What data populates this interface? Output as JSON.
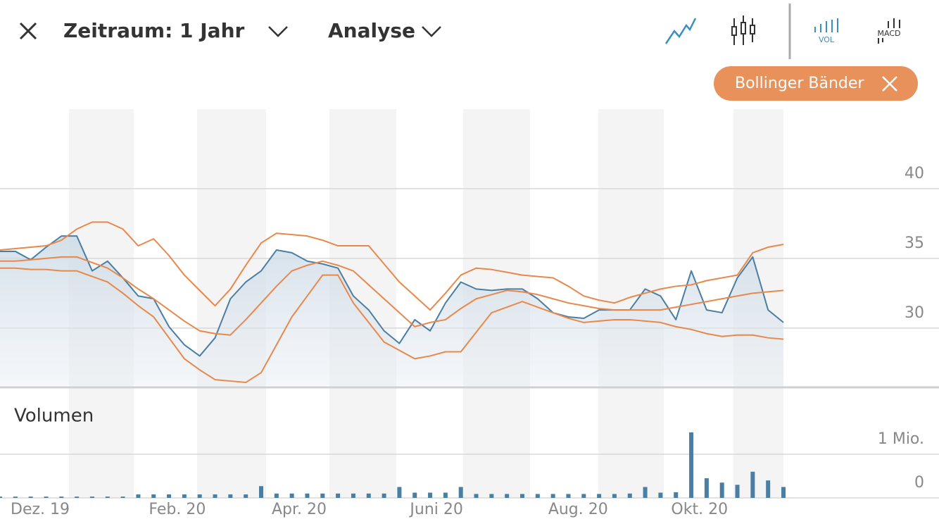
{
  "header": {
    "period": "Zeitraum: 1 Jahr",
    "analysis": "Analyse",
    "vol_icon": "VOL",
    "macd_icon": "MACD",
    "indicator_chip": "Bollinger Bänder"
  },
  "chart_data": [
    {
      "type": "line",
      "categories": [
        "Dez. 19",
        null,
        null,
        null,
        null,
        null,
        null,
        null,
        null,
        "Feb. 20",
        null,
        null,
        null,
        null,
        null,
        null,
        null,
        "Apr. 20",
        null,
        null,
        null,
        null,
        null,
        null,
        null,
        null,
        "Juni 20",
        null,
        null,
        null,
        null,
        null,
        null,
        null,
        null,
        "Aug. 20",
        null,
        null,
        null,
        null,
        null,
        null,
        null,
        "Okt. 20",
        null,
        null,
        null,
        null,
        null,
        null,
        null,
        null
      ],
      "series": [
        {
          "color": "#4a7ea3",
          "fill": true,
          "values": [
            35.5,
            35.5,
            34.9,
            35.8,
            36.6,
            36.6,
            34.1,
            34.8,
            33.6,
            32.3,
            32.1,
            30.1,
            28.8,
            28.0,
            29.3,
            32.1,
            33.3,
            34.1,
            35.6,
            35.4,
            34.8,
            34.6,
            34.3,
            32.3,
            31.3,
            29.8,
            28.9,
            30.6,
            29.8,
            31.8,
            33.3,
            32.8,
            32.7,
            32.8,
            32.8,
            32.1,
            31.1,
            30.8,
            30.7,
            31.3,
            31.3,
            31.3,
            32.8,
            32.3,
            30.6,
            34.1,
            31.3,
            31.1,
            33.6,
            35.1,
            31.3,
            30.4
          ]
        },
        {
          "color": "#e8884a",
          "fill": false,
          "values": [
            35.6,
            35.7,
            35.8,
            35.9,
            36.3,
            37.1,
            37.6,
            37.6,
            37.1,
            35.9,
            36.4,
            35.2,
            33.8,
            32.7,
            31.6,
            32.8,
            34.5,
            36.1,
            36.8,
            36.7,
            36.6,
            36.3,
            35.9,
            35.9,
            35.9,
            34.6,
            33.3,
            32.3,
            31.3,
            32.5,
            33.8,
            34.3,
            34.2,
            34.0,
            33.8,
            33.7,
            33.6,
            33.0,
            32.3,
            32.0,
            31.8,
            32.2,
            32.5,
            32.8,
            33.0,
            33.1,
            33.4,
            33.6,
            33.8,
            35.4,
            35.8,
            36.0
          ]
        },
        {
          "color": "#e8884a",
          "fill": false,
          "values": [
            34.8,
            34.8,
            34.9,
            35.0,
            35.1,
            35.1,
            34.7,
            34.3,
            33.6,
            32.8,
            32.1,
            31.3,
            30.5,
            29.8,
            29.6,
            29.5,
            30.6,
            31.8,
            33.0,
            34.1,
            34.5,
            34.8,
            34.5,
            34.1,
            33.1,
            32.1,
            31.1,
            30.1,
            30.4,
            30.6,
            31.4,
            32.1,
            32.4,
            32.7,
            32.6,
            32.4,
            32.1,
            31.8,
            31.6,
            31.4,
            31.3,
            31.3,
            31.3,
            31.3,
            31.5,
            31.7,
            31.9,
            32.1,
            32.3,
            32.5,
            32.6,
            32.7
          ]
        },
        {
          "color": "#e8884a",
          "fill": false,
          "values": [
            34.3,
            34.3,
            34.2,
            34.2,
            34.1,
            34.1,
            33.7,
            33.3,
            32.5,
            31.6,
            30.8,
            29.3,
            27.8,
            27.0,
            26.3,
            26.2,
            26.1,
            26.8,
            28.8,
            30.8,
            32.3,
            33.8,
            33.8,
            31.8,
            30.4,
            29.0,
            28.4,
            27.8,
            28.0,
            28.3,
            28.3,
            29.7,
            31.1,
            31.5,
            31.9,
            31.5,
            31.1,
            30.7,
            30.4,
            30.5,
            30.6,
            30.6,
            30.5,
            30.4,
            30.1,
            29.9,
            29.6,
            29.4,
            29.5,
            29.5,
            29.3,
            29.2
          ]
        }
      ],
      "ylim": [
        25.9,
        45.7
      ],
      "yticks": [
        30,
        35,
        40
      ],
      "grid": true
    },
    {
      "type": "bar",
      "title": "Volumen",
      "color": "#4a7ea3",
      "values": [
        30000,
        30000,
        30000,
        30000,
        30000,
        30000,
        30000,
        30000,
        30000,
        80000,
        80000,
        80000,
        80000,
        80000,
        80000,
        80000,
        80000,
        270000,
        100000,
        100000,
        100000,
        100000,
        100000,
        100000,
        100000,
        100000,
        250000,
        120000,
        120000,
        120000,
        250000,
        90000,
        90000,
        90000,
        90000,
        90000,
        90000,
        90000,
        90000,
        90000,
        90000,
        100000,
        250000,
        120000,
        130000,
        1500000,
        450000,
        350000,
        300000,
        600000,
        400000,
        250000
      ],
      "ylim": [
        0,
        2450000
      ],
      "yticks": [
        0,
        {
          "value": 1000000,
          "label": "1 Mio."
        }
      ],
      "grid": true
    }
  ]
}
